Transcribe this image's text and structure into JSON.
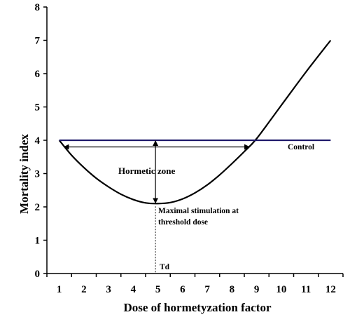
{
  "chart_data": {
    "type": "line",
    "title": "",
    "xlabel": "Dose of hormetyzation factor",
    "ylabel": "Mortality index",
    "xlim": [
      0.5,
      12.5
    ],
    "ylim": [
      0,
      8
    ],
    "x_ticks": [
      1,
      2,
      3,
      4,
      5,
      6,
      7,
      8,
      9,
      10,
      11,
      12
    ],
    "y_ticks": [
      0,
      1,
      2,
      3,
      4,
      5,
      6,
      7,
      8
    ],
    "grid": false,
    "series": [
      {
        "name": "",
        "color": "#000000",
        "x": [
          1,
          1.5,
          2,
          2.5,
          3,
          3.5,
          4,
          4.5,
          5,
          5.5,
          6,
          6.5,
          7,
          7.5,
          8,
          8.5,
          9,
          10,
          11,
          12
        ],
        "y": [
          4.0,
          3.55,
          3.18,
          2.86,
          2.6,
          2.38,
          2.22,
          2.12,
          2.1,
          2.13,
          2.24,
          2.42,
          2.66,
          2.96,
          3.3,
          3.66,
          4.05,
          5.05,
          6.05,
          7.0
        ]
      },
      {
        "name": "Control",
        "color": "#1f1a6b",
        "x": [
          1,
          12
        ],
        "y": [
          4,
          4
        ]
      }
    ],
    "annotations": {
      "control_label": "Control",
      "hormetic_zone": "Hormetic zone",
      "max_stim_line1": "Maximal stimulation at",
      "max_stim_line2": "threshold dose",
      "td_label": "Td",
      "hormetic_zone_x": [
        1.2,
        8.7
      ],
      "hormetic_zone_y": 3.8,
      "max_stim_arrow": {
        "x": 4.9,
        "y_from": 4.0,
        "y_to": 2.1
      },
      "threshold_dose_x": 4.9
    }
  }
}
